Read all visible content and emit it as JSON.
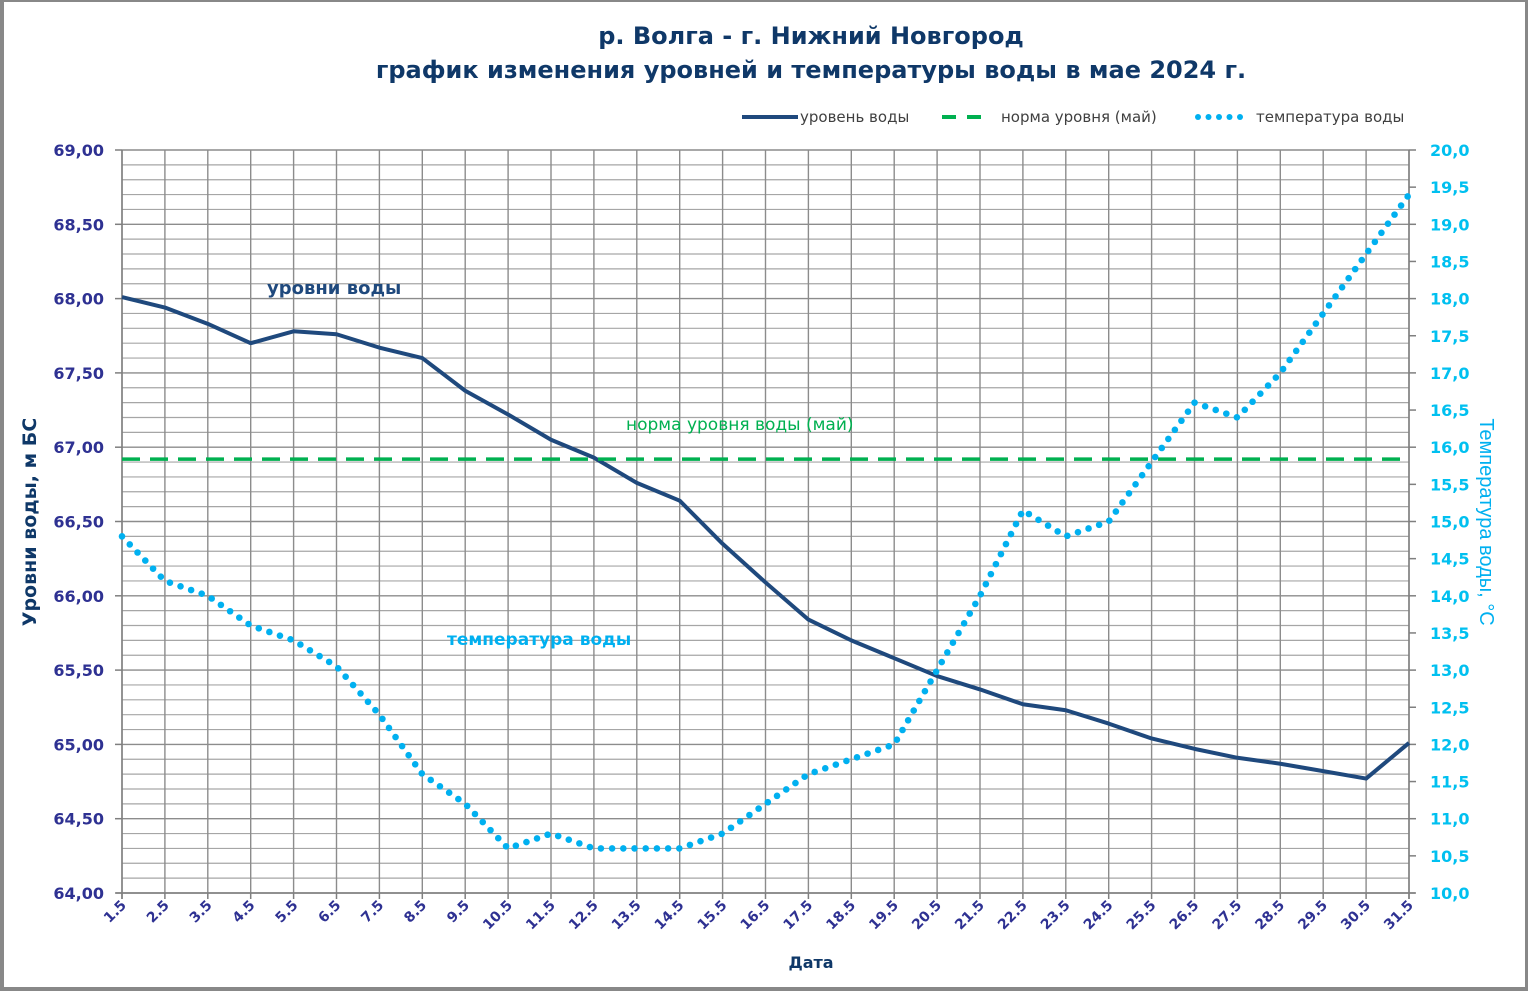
{
  "chart_data": {
    "type": "line",
    "title": "р. Волга - г. Нижний Новгород",
    "subtitle": "график изменения уровней и температуры  воды в мае 2024 г.",
    "xlabel": "Дата",
    "ylabel": "Уровни воды, м БС",
    "y2label": "Температура воды, °С",
    "ylim": [
      64.0,
      69.0
    ],
    "y2lim": [
      10.0,
      20.0
    ],
    "grid": true,
    "legend_position": "top-right",
    "categories": [
      "1.5",
      "2.5",
      "3.5",
      "4.5",
      "5.5",
      "6.5",
      "7.5",
      "8.5",
      "9.5",
      "10.5",
      "11.5",
      "12.5",
      "13.5",
      "14.5",
      "15.5",
      "16.5",
      "17.5",
      "18.5",
      "19.5",
      "20.5",
      "21.5",
      "22.5",
      "23.5",
      "24.5",
      "25.5",
      "26.5",
      "27.5",
      "28.5",
      "29.5",
      "30.5",
      "31.5"
    ],
    "y_ticks": [
      "64,00",
      "64,50",
      "65,00",
      "65,50",
      "66,00",
      "66,50",
      "67,00",
      "67,50",
      "68,00",
      "68,50",
      "69,00"
    ],
    "y_tick_values": [
      64.0,
      64.5,
      65.0,
      65.5,
      66.0,
      66.5,
      67.0,
      67.5,
      68.0,
      68.5,
      69.0
    ],
    "y2_ticks": [
      "10,0",
      "10,5",
      "11,0",
      "11,5",
      "12,0",
      "12,5",
      "13,0",
      "13,5",
      "14,0",
      "14,5",
      "15,0",
      "15,5",
      "16,0",
      "16,5",
      "17,0",
      "17,5",
      "18,0",
      "18,5",
      "19,0",
      "19,5",
      "20,0"
    ],
    "y2_tick_values": [
      10.0,
      10.5,
      11.0,
      11.5,
      12.0,
      12.5,
      13.0,
      13.5,
      14.0,
      14.5,
      15.0,
      15.5,
      16.0,
      16.5,
      17.0,
      17.5,
      18.0,
      18.5,
      19.0,
      19.5,
      20.0
    ],
    "series": [
      {
        "name": "уровень воды",
        "axis": "left",
        "style": "solid",
        "color": "#1f497d",
        "values": [
          68.01,
          67.94,
          67.83,
          67.7,
          67.78,
          67.76,
          67.67,
          67.6,
          67.38,
          67.22,
          67.05,
          66.93,
          66.76,
          66.64,
          66.35,
          66.09,
          65.84,
          65.7,
          65.58,
          65.46,
          65.37,
          65.27,
          65.23,
          65.14,
          65.04,
          64.97,
          64.91,
          64.87,
          64.82,
          64.77,
          65.01
        ]
      },
      {
        "name": "норма уровня (май)",
        "axis": "left",
        "style": "dashed",
        "color": "#00b050",
        "values": [
          66.92,
          66.92,
          66.92,
          66.92,
          66.92,
          66.92,
          66.92,
          66.92,
          66.92,
          66.92,
          66.92,
          66.92,
          66.92,
          66.92,
          66.92,
          66.92,
          66.92,
          66.92,
          66.92,
          66.92,
          66.92,
          66.92,
          66.92,
          66.92,
          66.92,
          66.92,
          66.92,
          66.92,
          66.92,
          66.92,
          66.92
        ]
      },
      {
        "name": "температура воды",
        "axis": "right",
        "style": "dotted",
        "color": "#00b0f0",
        "values": [
          14.8,
          14.2,
          14.0,
          13.6,
          13.4,
          13.05,
          12.4,
          11.6,
          11.2,
          10.6,
          10.8,
          10.6,
          10.6,
          10.6,
          10.8,
          11.2,
          11.6,
          11.8,
          12.0,
          13.0,
          14.0,
          15.15,
          14.8,
          15.0,
          15.8,
          16.6,
          16.4,
          17.0,
          17.8,
          18.6,
          19.4
        ]
      }
    ],
    "annotations": {
      "level": "уровни воды",
      "norm": "норма уровня воды  (май)",
      "temperature": "температура воды"
    }
  }
}
